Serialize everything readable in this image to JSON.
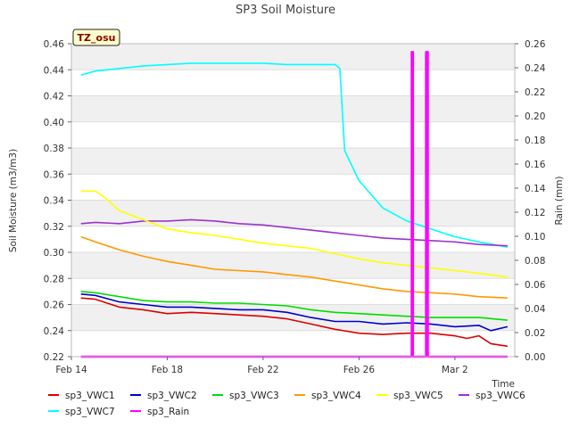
{
  "chart_data": {
    "type": "line",
    "title": "SP3 Soil Moisture",
    "badge": "TZ_osu",
    "xlabel": "Time",
    "ylabel_left": "Soil Moisture (m3/m3)",
    "ylabel_right": "Rain (mm)",
    "x_range_days": [
      0,
      18.5
    ],
    "x_ticks": [
      {
        "day": 0,
        "label": "Feb 14"
      },
      {
        "day": 4,
        "label": "Feb 18"
      },
      {
        "day": 8,
        "label": "Feb 22"
      },
      {
        "day": 12,
        "label": "Feb 26"
      },
      {
        "day": 16,
        "label": "Mar 2"
      }
    ],
    "ylim_left": [
      0.22,
      0.46
    ],
    "yticks_left": [
      "0.22",
      "0.24",
      "0.26",
      "0.28",
      "0.30",
      "0.32",
      "0.34",
      "0.36",
      "0.38",
      "0.40",
      "0.42",
      "0.44",
      "0.46"
    ],
    "ylim_right": [
      0.0,
      0.26
    ],
    "yticks_right": [
      "0.00",
      "0.02",
      "0.04",
      "0.06",
      "0.08",
      "0.10",
      "0.12",
      "0.14",
      "0.16",
      "0.18",
      "0.20",
      "0.22",
      "0.24",
      "0.26"
    ],
    "series": [
      {
        "name": "sp3_VWC1",
        "color": "#dd0000",
        "axis": "left",
        "points": [
          [
            0.4,
            0.265
          ],
          [
            1,
            0.264
          ],
          [
            2,
            0.258
          ],
          [
            3,
            0.256
          ],
          [
            4,
            0.253
          ],
          [
            5,
            0.254
          ],
          [
            6,
            0.253
          ],
          [
            7,
            0.252
          ],
          [
            8,
            0.251
          ],
          [
            9,
            0.249
          ],
          [
            10,
            0.245
          ],
          [
            11,
            0.241
          ],
          [
            12,
            0.238
          ],
          [
            13,
            0.237
          ],
          [
            14,
            0.238
          ],
          [
            15,
            0.238
          ],
          [
            16,
            0.236
          ],
          [
            16.5,
            0.234
          ],
          [
            17,
            0.236
          ],
          [
            17.5,
            0.23
          ],
          [
            18.2,
            0.228
          ]
        ]
      },
      {
        "name": "sp3_VWC2",
        "color": "#0000cc",
        "axis": "left",
        "points": [
          [
            0.4,
            0.268
          ],
          [
            1,
            0.267
          ],
          [
            2,
            0.262
          ],
          [
            3,
            0.26
          ],
          [
            4,
            0.258
          ],
          [
            5,
            0.258
          ],
          [
            6,
            0.257
          ],
          [
            7,
            0.256
          ],
          [
            8,
            0.256
          ],
          [
            9,
            0.254
          ],
          [
            10,
            0.25
          ],
          [
            11,
            0.247
          ],
          [
            12,
            0.247
          ],
          [
            13,
            0.245
          ],
          [
            14,
            0.246
          ],
          [
            15,
            0.245
          ],
          [
            16,
            0.243
          ],
          [
            17,
            0.244
          ],
          [
            17.5,
            0.24
          ],
          [
            18.2,
            0.243
          ]
        ]
      },
      {
        "name": "sp3_VWC3",
        "color": "#00dd00",
        "axis": "left",
        "points": [
          [
            0.4,
            0.27
          ],
          [
            1,
            0.269
          ],
          [
            2,
            0.266
          ],
          [
            3,
            0.263
          ],
          [
            4,
            0.262
          ],
          [
            5,
            0.262
          ],
          [
            6,
            0.261
          ],
          [
            7,
            0.261
          ],
          [
            8,
            0.26
          ],
          [
            9,
            0.259
          ],
          [
            10,
            0.256
          ],
          [
            11,
            0.254
          ],
          [
            12,
            0.253
          ],
          [
            13,
            0.252
          ],
          [
            14,
            0.251
          ],
          [
            15,
            0.25
          ],
          [
            16,
            0.25
          ],
          [
            17,
            0.25
          ],
          [
            18.2,
            0.248
          ]
        ]
      },
      {
        "name": "sp3_VWC4",
        "color": "#ff9900",
        "axis": "left",
        "points": [
          [
            0.4,
            0.312
          ],
          [
            1,
            0.308
          ],
          [
            2,
            0.302
          ],
          [
            3,
            0.297
          ],
          [
            4,
            0.293
          ],
          [
            5,
            0.29
          ],
          [
            6,
            0.287
          ],
          [
            7,
            0.286
          ],
          [
            8,
            0.285
          ],
          [
            9,
            0.283
          ],
          [
            10,
            0.281
          ],
          [
            11,
            0.278
          ],
          [
            12,
            0.275
          ],
          [
            13,
            0.272
          ],
          [
            14,
            0.27
          ],
          [
            15,
            0.269
          ],
          [
            16,
            0.268
          ],
          [
            17,
            0.266
          ],
          [
            18.2,
            0.265
          ]
        ]
      },
      {
        "name": "sp3_VWC5",
        "color": "#ffff00",
        "axis": "left",
        "points": [
          [
            0.4,
            0.347
          ],
          [
            1,
            0.347
          ],
          [
            1.4,
            0.342
          ],
          [
            2,
            0.332
          ],
          [
            3,
            0.325
          ],
          [
            4,
            0.318
          ],
          [
            5,
            0.315
          ],
          [
            6,
            0.313
          ],
          [
            7,
            0.31
          ],
          [
            8,
            0.307
          ],
          [
            9,
            0.305
          ],
          [
            10,
            0.303
          ],
          [
            11,
            0.299
          ],
          [
            12,
            0.295
          ],
          [
            13,
            0.292
          ],
          [
            14,
            0.29
          ],
          [
            15,
            0.288
          ],
          [
            16,
            0.286
          ],
          [
            17,
            0.284
          ],
          [
            18.2,
            0.281
          ]
        ]
      },
      {
        "name": "sp3_VWC6",
        "color": "#9933cc",
        "axis": "left",
        "points": [
          [
            0.4,
            0.322
          ],
          [
            1,
            0.323
          ],
          [
            2,
            0.322
          ],
          [
            3,
            0.324
          ],
          [
            4,
            0.324
          ],
          [
            5,
            0.325
          ],
          [
            6,
            0.324
          ],
          [
            7,
            0.322
          ],
          [
            8,
            0.321
          ],
          [
            9,
            0.319
          ],
          [
            10,
            0.317
          ],
          [
            11,
            0.315
          ],
          [
            12,
            0.313
          ],
          [
            13,
            0.311
          ],
          [
            14,
            0.31
          ],
          [
            15,
            0.309
          ],
          [
            16,
            0.308
          ],
          [
            17,
            0.306
          ],
          [
            18.2,
            0.305
          ]
        ]
      },
      {
        "name": "sp3_VWC7",
        "color": "#00ffff",
        "axis": "left",
        "points": [
          [
            0.4,
            0.436
          ],
          [
            1,
            0.439
          ],
          [
            2,
            0.441
          ],
          [
            3,
            0.443
          ],
          [
            4,
            0.444
          ],
          [
            5,
            0.445
          ],
          [
            6,
            0.445
          ],
          [
            7,
            0.445
          ],
          [
            8,
            0.445
          ],
          [
            9,
            0.444
          ],
          [
            10,
            0.444
          ],
          [
            11,
            0.444
          ],
          [
            11.2,
            0.441
          ],
          [
            11.4,
            0.378
          ],
          [
            12,
            0.355
          ],
          [
            13,
            0.334
          ],
          [
            14,
            0.324
          ],
          [
            15,
            0.318
          ],
          [
            16,
            0.312
          ],
          [
            17,
            0.308
          ],
          [
            18.2,
            0.304
          ]
        ]
      },
      {
        "name": "sp3_Rain",
        "color": "#ff00ff",
        "axis": "right",
        "points": [
          [
            0.4,
            0.0
          ],
          [
            14.2,
            0.0
          ],
          [
            14.2,
            0.253
          ],
          [
            14.25,
            0.253
          ],
          [
            14.25,
            0.0
          ],
          [
            14.8,
            0.0
          ],
          [
            14.8,
            0.253
          ],
          [
            14.87,
            0.253
          ],
          [
            14.87,
            0.0
          ],
          [
            18.2,
            0.0
          ]
        ]
      }
    ],
    "grid": true,
    "legend_position": "bottom"
  }
}
